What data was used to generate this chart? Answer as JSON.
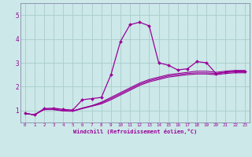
{
  "xlabel": "Windchill (Refroidissement éolien,°C)",
  "bg_color": "#cce8e8",
  "grid_color": "#aacccc",
  "line_color": "#990099",
  "spine_color": "#8888aa",
  "xlim": [
    -0.5,
    23.5
  ],
  "ylim": [
    0.5,
    5.5
  ],
  "yticks": [
    1,
    2,
    3,
    4,
    5
  ],
  "xticks": [
    0,
    1,
    2,
    3,
    4,
    5,
    6,
    7,
    8,
    9,
    10,
    11,
    12,
    13,
    14,
    15,
    16,
    17,
    18,
    19,
    20,
    21,
    22,
    23
  ],
  "series": [
    {
      "x": [
        0,
        1,
        2,
        3,
        4,
        5,
        6,
        7,
        8,
        9,
        10,
        11,
        12,
        13,
        14,
        15,
        16,
        17,
        18,
        19,
        20,
        21,
        22,
        23
      ],
      "y": [
        0.88,
        0.82,
        1.08,
        1.1,
        1.05,
        1.02,
        1.45,
        1.5,
        1.55,
        2.5,
        3.9,
        4.6,
        4.7,
        4.55,
        3.0,
        2.9,
        2.7,
        2.75,
        3.05,
        3.0,
        2.55,
        2.6,
        2.65,
        2.65
      ],
      "marker": true
    },
    {
      "x": [
        0,
        1,
        2,
        3,
        4,
        5,
        6,
        7,
        8,
        9,
        10,
        11,
        12,
        13,
        14,
        15,
        16,
        17,
        18,
        19,
        20,
        21,
        22,
        23
      ],
      "y": [
        0.88,
        0.82,
        1.05,
        1.05,
        1.0,
        0.98,
        1.1,
        1.2,
        1.35,
        1.55,
        1.75,
        1.95,
        2.15,
        2.3,
        2.4,
        2.5,
        2.55,
        2.6,
        2.65,
        2.65,
        2.6,
        2.65,
        2.68,
        2.68
      ],
      "marker": false
    },
    {
      "x": [
        0,
        1,
        2,
        3,
        4,
        5,
        6,
        7,
        8,
        9,
        10,
        11,
        12,
        13,
        14,
        15,
        16,
        17,
        18,
        19,
        20,
        21,
        22,
        23
      ],
      "y": [
        0.88,
        0.82,
        1.05,
        1.05,
        1.0,
        0.98,
        1.1,
        1.2,
        1.32,
        1.5,
        1.7,
        1.9,
        2.1,
        2.25,
        2.35,
        2.45,
        2.5,
        2.55,
        2.58,
        2.58,
        2.55,
        2.6,
        2.62,
        2.62
      ],
      "marker": false
    },
    {
      "x": [
        0,
        1,
        2,
        3,
        4,
        5,
        6,
        7,
        8,
        9,
        10,
        11,
        12,
        13,
        14,
        15,
        16,
        17,
        18,
        19,
        20,
        21,
        22,
        23
      ],
      "y": [
        0.88,
        0.82,
        1.04,
        1.04,
        0.98,
        0.97,
        1.08,
        1.18,
        1.28,
        1.45,
        1.65,
        1.85,
        2.05,
        2.2,
        2.3,
        2.4,
        2.45,
        2.5,
        2.53,
        2.53,
        2.5,
        2.55,
        2.58,
        2.58
      ],
      "marker": false
    }
  ]
}
